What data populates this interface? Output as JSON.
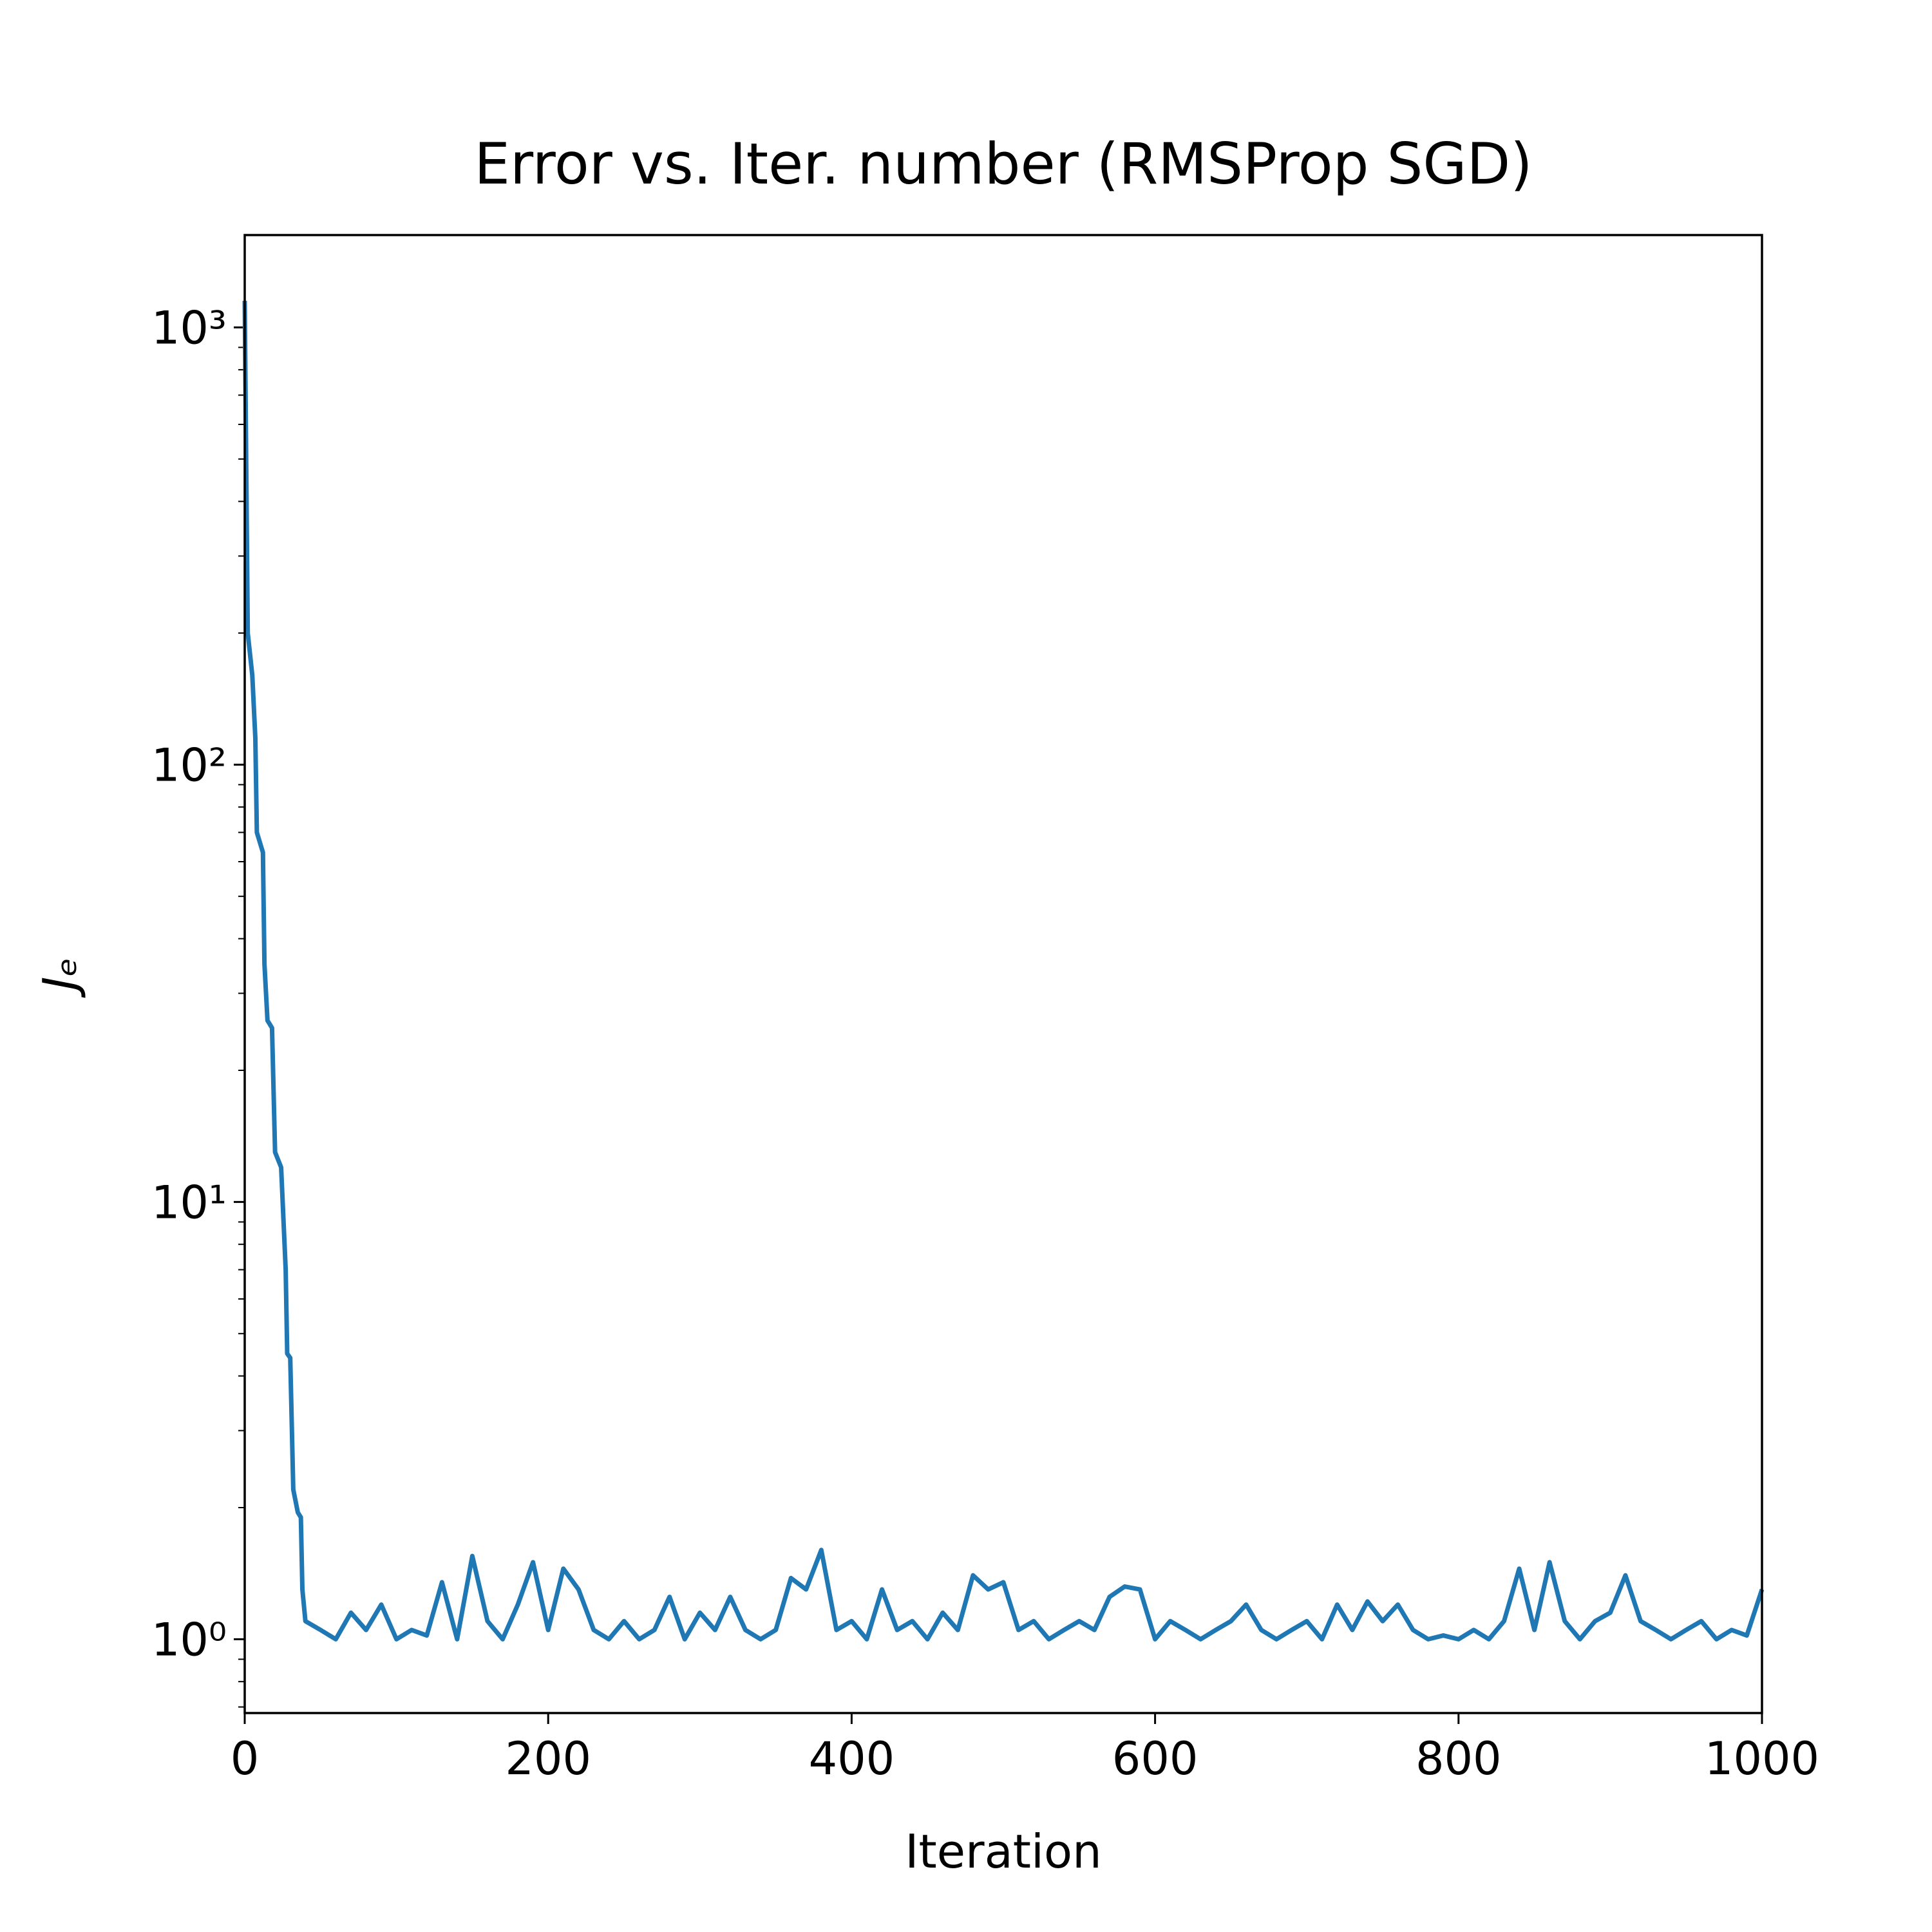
{
  "chart_data": {
    "type": "line",
    "title": "Error vs. Iter. number (RMSProp SGD)",
    "xlabel": "Iteration",
    "ylabel": "Jₑ",
    "x": [
      0,
      2,
      5,
      7,
      8,
      12,
      13,
      15,
      18,
      20,
      24,
      27,
      28,
      30,
      32,
      35,
      37,
      38,
      40,
      50,
      60,
      70,
      80,
      90,
      100,
      110,
      120,
      130,
      140,
      150,
      160,
      170,
      180,
      190,
      200,
      210,
      220,
      230,
      240,
      250,
      260,
      270,
      280,
      290,
      300,
      310,
      320,
      330,
      340,
      350,
      360,
      370,
      380,
      390,
      400,
      410,
      420,
      430,
      440,
      450,
      460,
      470,
      480,
      490,
      500,
      510,
      520,
      530,
      540,
      550,
      560,
      570,
      580,
      590,
      600,
      610,
      620,
      630,
      640,
      650,
      660,
      670,
      680,
      690,
      700,
      710,
      720,
      730,
      740,
      750,
      760,
      770,
      780,
      790,
      800,
      810,
      820,
      830,
      840,
      850,
      860,
      870,
      880,
      890,
      900,
      910,
      920,
      930,
      940,
      950,
      960,
      970,
      980,
      990,
      1000
    ],
    "series": [
      {
        "name": "Jₑ",
        "color": "#1f77b4",
        "values": [
          1150,
          200,
          160,
          115,
          70,
          63,
          35,
          26,
          25,
          13,
          12,
          7,
          4.5,
          4.4,
          2.2,
          1.95,
          1.9,
          1.3,
          1.1,
          1.05,
          1.0,
          1.15,
          1.05,
          1.2,
          1.0,
          1.05,
          1.02,
          1.35,
          1.0,
          1.55,
          1.1,
          1.0,
          1.2,
          1.5,
          1.05,
          1.45,
          1.3,
          1.05,
          1.0,
          1.1,
          1.0,
          1.05,
          1.25,
          1.0,
          1.15,
          1.05,
          1.25,
          1.05,
          1.0,
          1.05,
          1.38,
          1.3,
          1.6,
          1.05,
          1.1,
          1.0,
          1.3,
          1.05,
          1.1,
          1.0,
          1.15,
          1.05,
          1.4,
          1.3,
          1.35,
          1.05,
          1.1,
          1.0,
          1.05,
          1.1,
          1.05,
          1.25,
          1.32,
          1.3,
          1.0,
          1.1,
          1.05,
          1.0,
          1.05,
          1.1,
          1.2,
          1.05,
          1.0,
          1.05,
          1.1,
          1.0,
          1.2,
          1.05,
          1.22,
          1.1,
          1.2,
          1.05,
          1.0,
          1.02,
          1.0,
          1.05,
          1.0,
          1.1,
          1.45,
          1.05,
          1.5,
          1.1,
          1.0,
          1.1,
          1.15,
          1.4,
          1.1,
          1.05,
          1.0,
          1.05,
          1.1,
          1.0,
          1.05,
          1.02,
          1.3
        ]
      }
    ],
    "xlim": [
      0,
      1000
    ],
    "xticks": [
      0,
      200,
      400,
      600,
      800,
      1000
    ],
    "ylim": [
      0.678,
      1626
    ],
    "ylog": true,
    "yticks": [
      {
        "value": 1,
        "label": "10⁰"
      },
      {
        "value": 10,
        "label": "10¹"
      },
      {
        "value": 100,
        "label": "10²"
      },
      {
        "value": 1000,
        "label": "10³"
      }
    ],
    "yticks_minor": [
      0.7,
      0.8,
      0.9,
      2,
      3,
      4,
      5,
      6,
      7,
      8,
      9,
      20,
      30,
      40,
      50,
      60,
      70,
      80,
      90,
      200,
      300,
      400,
      500,
      600,
      700,
      800,
      900
    ]
  }
}
